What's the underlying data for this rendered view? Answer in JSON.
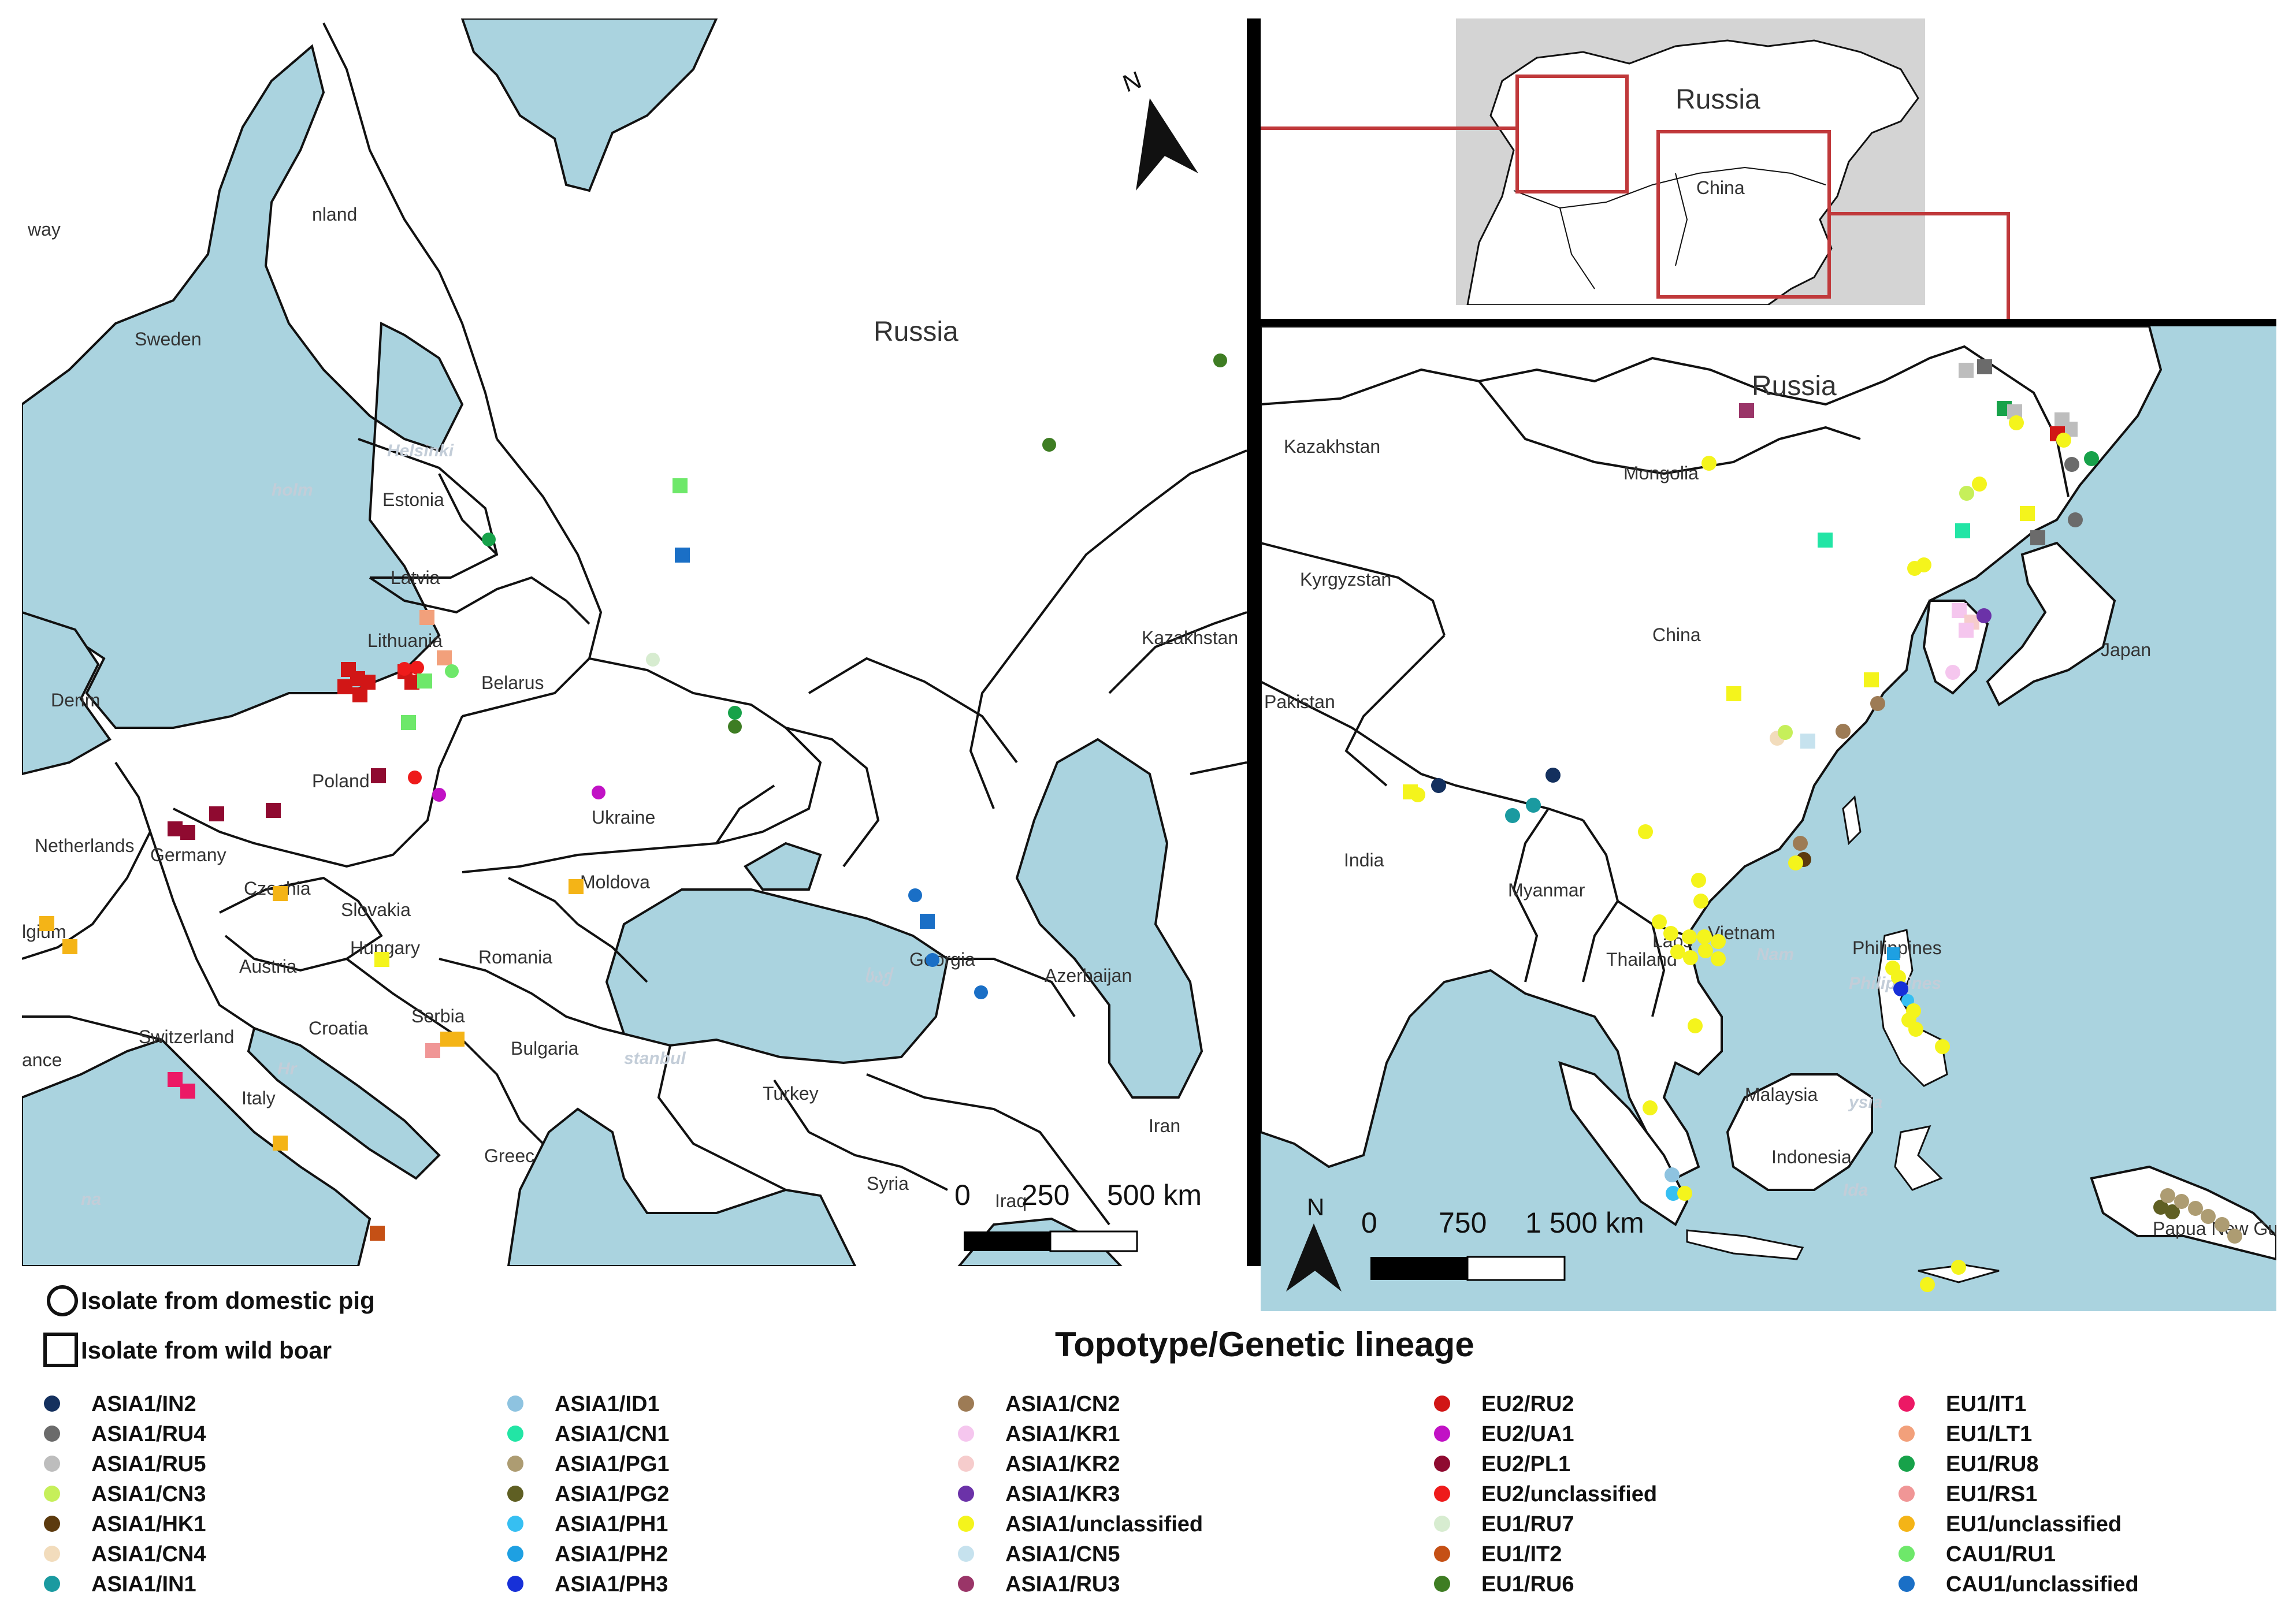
{
  "europe_map": {
    "countries": {
      "finland": "nland",
      "sweden": "Sweden",
      "norway": "way",
      "estonia": "Estonia",
      "latvia": "Latvia",
      "lithuania": "Lithuania",
      "belarus": "Belarus",
      "poland": "Poland",
      "ukraine": "Ukraine",
      "germany": "Germany",
      "netherlands": "Netherlands",
      "denmark": "Denm",
      "belgium": "lgium",
      "czechia": "Czechia",
      "slovakia": "Slovakia",
      "austria": "Austria",
      "hungary": "Hungary",
      "moldova": "Moldova",
      "romania": "Romania",
      "switzerland": "Switzerland",
      "croatia": "Croatia",
      "serbia": "Serbia",
      "bulgaria": "Bulgaria",
      "italy": "Italy",
      "greece": "Greec",
      "turkey": "Turkey",
      "syria": "Syria",
      "iraq": "Iraq",
      "iran": "Iran",
      "georgia": "Georgia",
      "azerbaijan": "Azerbaijan",
      "kazakhstan": "Kazakhstan",
      "russia": "Russia",
      "france": "ance"
    },
    "seas": {
      "holm": "holm",
      "helsinki": "Helsinki",
      "istanbul": "stanbul",
      "hr": "Hr",
      "na": "na",
      "georgia_native": "საქ"
    },
    "scale": {
      "zero": "0",
      "mid": "250",
      "end": "500 km"
    },
    "north": "N"
  },
  "asia_map": {
    "countries": {
      "russia": "Russia",
      "kazakhstan": "Kazakhstan",
      "mongolia": "Mongolia",
      "kyrgyzstan": "Kyrgyzstan",
      "china": "China",
      "pakistan": "Pakistan",
      "india": "India",
      "myanmar": "Myanmar",
      "laos": "Laos",
      "thailand": "Thailand",
      "vietnam": "Vietnam",
      "philippines": "Philippines",
      "malaysia": "Malaysia",
      "indonesia": "Indonesia",
      "japan": "Japan",
      "png": "Papua New Guinea"
    },
    "seas": {
      "philippines_native": "Philippines",
      "nam": "Nam",
      "ysia": "ysia",
      "ida": "Ida"
    },
    "scale": {
      "zero": "0",
      "mid": "750",
      "end": "1 500 km"
    },
    "north": "N"
  },
  "inset_map": {
    "russia": "Russia",
    "china": "China"
  },
  "shape_legend": {
    "circle": "Isolate from domestic pig",
    "square": "Isolate from wild boar"
  },
  "legend_title": "Topotype/Genetic lineage",
  "legend": [
    {
      "label": "ASIA1/IN2",
      "color": "#14305e"
    },
    {
      "label": "ASIA1/RU4",
      "color": "#6b6b6b"
    },
    {
      "label": "ASIA1/RU5",
      "color": "#bdbdbd"
    },
    {
      "label": "ASIA1/CN3",
      "color": "#c6ef5a"
    },
    {
      "label": "ASIA1/HK1",
      "color": "#5c3a0e"
    },
    {
      "label": "ASIA1/CN4",
      "color": "#f2dcbc"
    },
    {
      "label": "ASIA1/IN1",
      "color": "#1a9aa0"
    },
    {
      "label": "ASIA1/ID1",
      "color": "#8ec3e0"
    },
    {
      "label": "ASIA1/CN1",
      "color": "#22e5a5"
    },
    {
      "label": "ASIA1/PG1",
      "color": "#ad9c72"
    },
    {
      "label": "ASIA1/PG2",
      "color": "#5f5f23"
    },
    {
      "label": "ASIA1/PH1",
      "color": "#36bff2"
    },
    {
      "label": "ASIA1/PH2",
      "color": "#1ea0e2"
    },
    {
      "label": "ASIA1/PH3",
      "color": "#1730d8"
    },
    {
      "label": "ASIA1/CN2",
      "color": "#9d7b55"
    },
    {
      "label": "ASIA1/KR1",
      "color": "#f5c6ee"
    },
    {
      "label": "ASIA1/KR2",
      "color": "#f6cccc"
    },
    {
      "label": "ASIA1/KR3",
      "color": "#6b32a8"
    },
    {
      "label": "ASIA1/unclassified",
      "color": "#f4f41c"
    },
    {
      "label": "ASIA1/CN5",
      "color": "#c6e2ee"
    },
    {
      "label": "ASIA1/RU3",
      "color": "#9a3568"
    },
    {
      "label": "EU2/RU2",
      "color": "#d11616"
    },
    {
      "label": "EU2/UA1",
      "color": "#c112c5"
    },
    {
      "label": "EU2/PL1",
      "color": "#8f0a30"
    },
    {
      "label": "EU2/unclassified",
      "color": "#ee1b1b"
    },
    {
      "label": "EU1/RU7",
      "color": "#d7ecd0"
    },
    {
      "label": "EU1/IT2",
      "color": "#c55015"
    },
    {
      "label": "EU1/RU6",
      "color": "#3e7d23"
    },
    {
      "label": "EU1/IT1",
      "color": "#ec1965"
    },
    {
      "label": "EU1/LT1",
      "color": "#f2a07b"
    },
    {
      "label": "EU1/RU8",
      "color": "#17a24a"
    },
    {
      "label": "EU1/RS1",
      "color": "#f09696"
    },
    {
      "label": "EU1/unclassified",
      "color": "#f4b417"
    },
    {
      "label": "CAU1/RU1",
      "color": "#6ee86a"
    },
    {
      "label": "CAU1/unclassified",
      "color": "#1a6fc6"
    }
  ],
  "colors": {
    "sea": "#aad3df",
    "land": "#ffffff",
    "border": "#111111",
    "frame": "#000000",
    "inset_box": "#c0393b",
    "inset_bg": "#d4d4d4"
  }
}
